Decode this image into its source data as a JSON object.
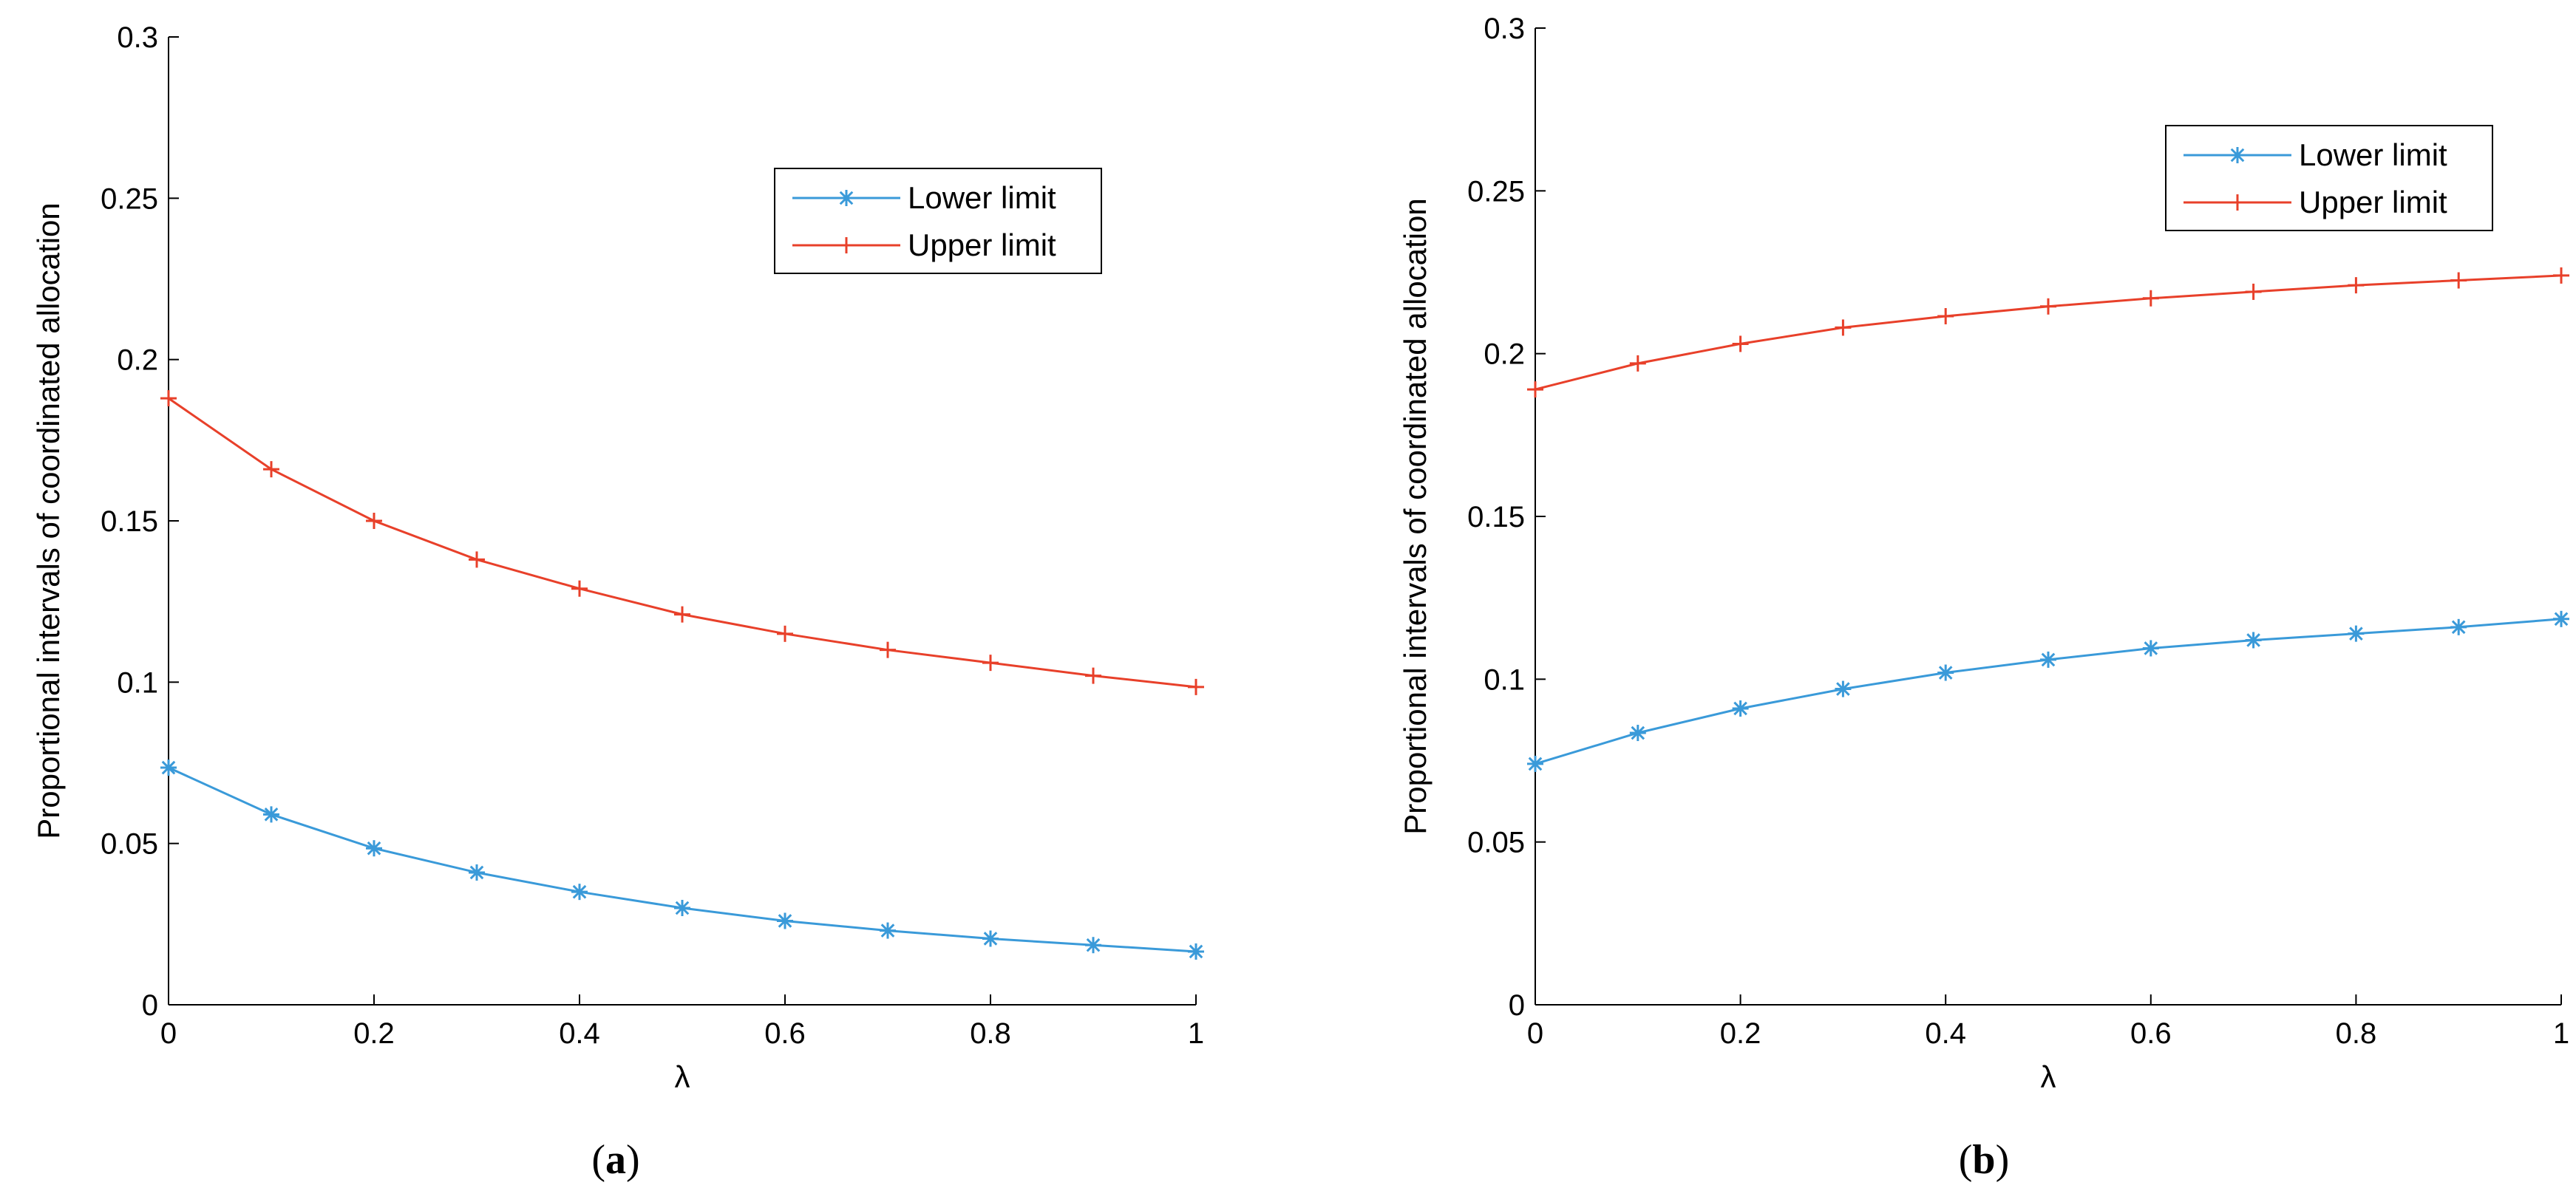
{
  "chart_data": [
    {
      "type": "line",
      "panel_label": "(a)",
      "panel_letter": "a",
      "title": "",
      "xlabel": "λ",
      "ylabel": "Proportional intervals of coordinated allocation",
      "xlim": [
        0,
        1
      ],
      "ylim": [
        0,
        0.3
      ],
      "xticks": [
        "0",
        "0.2",
        "0.4",
        "0.6",
        "0.8",
        "1"
      ],
      "yticks": [
        "0",
        "0.05",
        "0.1",
        "0.15",
        "0.2",
        "0.25",
        "0.3"
      ],
      "legend_position": "top-right",
      "x": [
        0,
        0.1,
        0.2,
        0.3,
        0.4,
        0.5,
        0.6,
        0.7,
        0.8,
        0.9,
        1
      ],
      "series": [
        {
          "name": "Lower limit",
          "color": "#3a9ad9",
          "marker": "asterisk",
          "values": [
            0.0735,
            0.059,
            0.0485,
            0.041,
            0.035,
            0.03,
            0.026,
            0.023,
            0.0205,
            0.0185,
            0.0165
          ]
        },
        {
          "name": "Upper limit",
          "color": "#e8402a",
          "marker": "plus",
          "values": [
            0.188,
            0.166,
            0.15,
            0.138,
            0.129,
            0.121,
            0.115,
            0.11,
            0.106,
            0.102,
            0.0985
          ]
        }
      ]
    },
    {
      "type": "line",
      "panel_label": "(b)",
      "panel_letter": "b",
      "title": "",
      "xlabel": "λ",
      "ylabel": "Proportional intervals of coordinated allocation",
      "xlim": [
        0,
        1
      ],
      "ylim": [
        0,
        0.3
      ],
      "xticks": [
        "0",
        "0.2",
        "0.4",
        "0.6",
        "0.8",
        "1"
      ],
      "yticks": [
        "0",
        "0.05",
        "0.1",
        "0.15",
        "0.2",
        "0.25",
        "0.3"
      ],
      "legend_position": "top-right",
      "x": [
        0,
        0.1,
        0.2,
        0.3,
        0.4,
        0.5,
        0.6,
        0.7,
        0.8,
        0.9,
        1
      ],
      "series": [
        {
          "name": "Lower limit",
          "color": "#3a9ad9",
          "marker": "asterisk",
          "values": [
            0.074,
            0.0835,
            0.091,
            0.097,
            0.102,
            0.106,
            0.1095,
            0.112,
            0.114,
            0.116,
            0.1185
          ]
        },
        {
          "name": "Upper limit",
          "color": "#e8402a",
          "marker": "plus",
          "values": [
            0.189,
            0.197,
            0.203,
            0.208,
            0.2115,
            0.2145,
            0.217,
            0.219,
            0.221,
            0.2225,
            0.224
          ]
        }
      ]
    }
  ]
}
